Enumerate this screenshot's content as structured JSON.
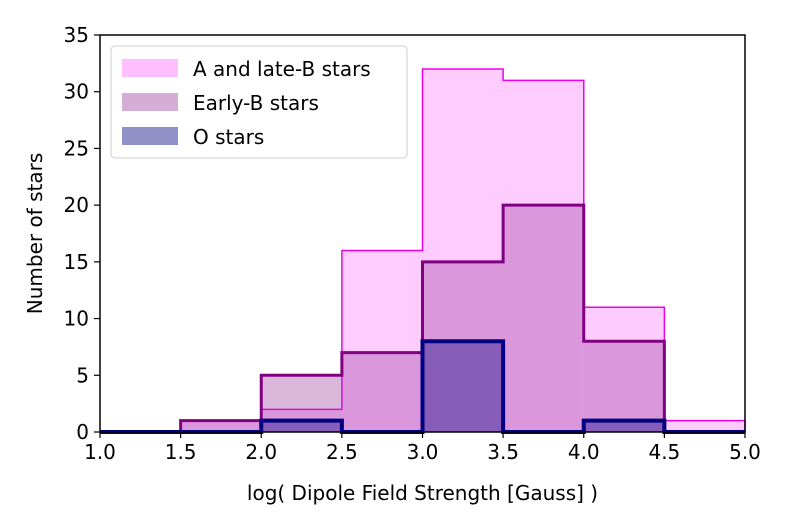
{
  "chart_data": {
    "type": "histogram",
    "xlabel": "log( Dipole Field Strength [Gauss] )",
    "ylabel": "Number of stars",
    "xlim": [
      1.0,
      5.0
    ],
    "ylim": [
      0,
      35
    ],
    "xticks": [
      "1.0",
      "1.5",
      "2.0",
      "2.5",
      "3.0",
      "3.5",
      "4.0",
      "4.5",
      "5.0"
    ],
    "yticks": [
      "0",
      "5",
      "10",
      "15",
      "20",
      "25",
      "30",
      "35"
    ],
    "bin_edges": [
      1.0,
      1.5,
      2.0,
      2.5,
      3.0,
      3.5,
      4.0,
      4.5,
      5.0
    ],
    "legend_position": "top-left",
    "series": [
      {
        "name": "A and late-B stars",
        "values": [
          0,
          1,
          2,
          16,
          32,
          31,
          11,
          1
        ],
        "fill_color": "#ff00ff",
        "fill_opacity": 0.2,
        "edge_color": "#ee00ee",
        "edge_width": 1.5
      },
      {
        "name": "Early-B stars",
        "values": [
          0,
          1,
          5,
          7,
          15,
          20,
          8,
          0
        ],
        "fill_color": "#993399",
        "fill_opacity": 0.35,
        "edge_color": "#800080",
        "edge_width": 3
      },
      {
        "name": "O stars",
        "values": [
          0,
          0,
          1,
          0,
          8,
          0,
          1,
          0
        ],
        "fill_color": "#000080",
        "fill_opacity": 0.38,
        "edge_color": "#000080",
        "edge_width": 4
      }
    ]
  }
}
